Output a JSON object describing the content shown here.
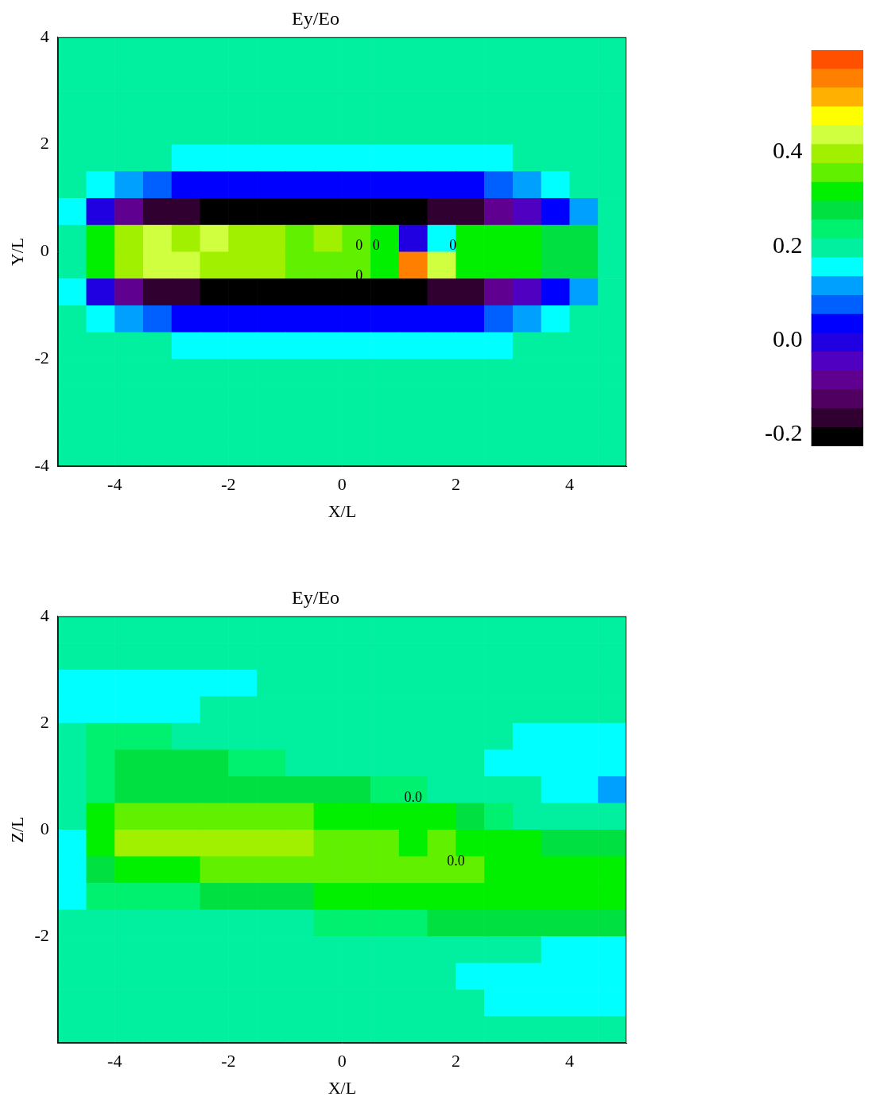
{
  "chart_data": [
    {
      "type": "heatmap",
      "title": "Ey/Eo",
      "x_label": "X/L",
      "y_label": "Y/L",
      "xlim": [
        -5,
        5
      ],
      "ylim": [
        -4,
        4
      ],
      "xticks": [
        -4,
        -2,
        0,
        2,
        4
      ],
      "yticks": [
        -4,
        -2,
        0,
        2,
        4
      ],
      "x": [
        -4.75,
        -4.25,
        -3.75,
        -3.25,
        -2.75,
        -2.25,
        -1.75,
        -1.25,
        -0.75,
        -0.25,
        0.25,
        0.75,
        1.25,
        1.75,
        2.25,
        2.75,
        3.25,
        3.75,
        4.25,
        4.75
      ],
      "y": [
        3.75,
        3.25,
        2.75,
        2.25,
        1.75,
        1.25,
        0.75,
        0.25,
        -0.25,
        -0.75,
        -1.25,
        -1.75,
        -2.25,
        -2.75,
        -3.25,
        -3.75
      ],
      "values": [
        [
          0.21,
          0.21,
          0.21,
          0.21,
          0.21,
          0.21,
          0.21,
          0.21,
          0.21,
          0.21,
          0.21,
          0.21,
          0.21,
          0.21,
          0.21,
          0.21,
          0.21,
          0.21,
          0.21,
          0.21
        ],
        [
          0.21,
          0.21,
          0.21,
          0.21,
          0.21,
          0.21,
          0.21,
          0.21,
          0.21,
          0.21,
          0.21,
          0.21,
          0.21,
          0.21,
          0.21,
          0.21,
          0.21,
          0.21,
          0.21,
          0.21
        ],
        [
          0.21,
          0.21,
          0.21,
          0.21,
          0.21,
          0.21,
          0.21,
          0.21,
          0.21,
          0.21,
          0.21,
          0.21,
          0.21,
          0.21,
          0.21,
          0.21,
          0.21,
          0.21,
          0.21,
          0.21
        ],
        [
          0.21,
          0.21,
          0.21,
          0.21,
          0.21,
          0.21,
          0.21,
          0.21,
          0.21,
          0.21,
          0.21,
          0.21,
          0.21,
          0.21,
          0.21,
          0.21,
          0.19,
          0.19,
          0.19,
          0.19
        ],
        [
          0.2,
          0.2,
          0.2,
          0.2,
          0.17,
          0.17,
          0.17,
          0.17,
          0.17,
          0.17,
          0.17,
          0.17,
          0.17,
          0.17,
          0.17,
          0.17,
          0.18,
          0.18,
          0.18,
          0.2
        ],
        [
          0.18,
          0.16,
          0.12,
          0.08,
          0.05,
          0.04,
          0.03,
          0.03,
          0.03,
          0.03,
          0.03,
          0.03,
          0.03,
          0.04,
          0.05,
          0.08,
          0.12,
          0.15,
          0.18,
          0.2
        ],
        [
          0.15,
          0.0,
          -0.1,
          -0.15,
          -0.18,
          -0.2,
          -0.2,
          -0.2,
          -0.2,
          -0.2,
          -0.2,
          -0.2,
          -0.2,
          -0.18,
          -0.15,
          -0.1,
          -0.05,
          0.05,
          0.12,
          0.18
        ],
        [
          0.2,
          0.3,
          0.38,
          0.42,
          0.4,
          0.42,
          0.38,
          0.4,
          0.36,
          0.38,
          0.34,
          0.33,
          0.0,
          0.15,
          0.32,
          0.32,
          0.3,
          0.28,
          0.26,
          0.2
        ],
        [
          0.2,
          0.3,
          0.4,
          0.45,
          0.42,
          0.4,
          0.4,
          0.38,
          0.37,
          0.36,
          0.34,
          0.33,
          0.55,
          0.42,
          0.32,
          0.32,
          0.3,
          0.28,
          0.26,
          0.2
        ],
        [
          0.15,
          0.0,
          -0.1,
          -0.15,
          -0.18,
          -0.2,
          -0.2,
          -0.2,
          -0.2,
          -0.2,
          -0.2,
          -0.2,
          -0.2,
          -0.18,
          -0.15,
          -0.1,
          -0.05,
          0.05,
          0.12,
          0.18
        ],
        [
          0.18,
          0.16,
          0.12,
          0.08,
          0.05,
          0.04,
          0.03,
          0.03,
          0.03,
          0.03,
          0.03,
          0.03,
          0.03,
          0.04,
          0.05,
          0.08,
          0.12,
          0.15,
          0.18,
          0.2
        ],
        [
          0.2,
          0.2,
          0.2,
          0.2,
          0.17,
          0.17,
          0.17,
          0.17,
          0.17,
          0.17,
          0.17,
          0.17,
          0.17,
          0.17,
          0.17,
          0.17,
          0.18,
          0.18,
          0.18,
          0.2
        ],
        [
          0.21,
          0.21,
          0.21,
          0.21,
          0.21,
          0.21,
          0.21,
          0.21,
          0.21,
          0.21,
          0.21,
          0.21,
          0.21,
          0.21,
          0.21,
          0.21,
          0.19,
          0.19,
          0.19,
          0.19
        ],
        [
          0.21,
          0.21,
          0.21,
          0.21,
          0.21,
          0.21,
          0.21,
          0.21,
          0.21,
          0.21,
          0.21,
          0.21,
          0.21,
          0.21,
          0.21,
          0.21,
          0.21,
          0.21,
          0.21,
          0.21
        ],
        [
          0.21,
          0.21,
          0.21,
          0.21,
          0.21,
          0.21,
          0.21,
          0.21,
          0.21,
          0.21,
          0.21,
          0.21,
          0.21,
          0.21,
          0.21,
          0.21,
          0.21,
          0.21,
          0.21,
          0.21
        ],
        [
          0.21,
          0.21,
          0.21,
          0.21,
          0.21,
          0.21,
          0.21,
          0.21,
          0.21,
          0.21,
          0.21,
          0.21,
          0.21,
          0.21,
          0.21,
          0.21,
          0.21,
          0.21,
          0.21,
          0.21
        ]
      ],
      "annotations": [
        {
          "text": "0",
          "x": 0.3,
          "y": 0.1
        },
        {
          "text": "0",
          "x": 0.6,
          "y": 0.1
        },
        {
          "text": "0",
          "x": 0.3,
          "y": -0.45
        },
        {
          "text": "0",
          "x": 1.95,
          "y": 0.1
        }
      ]
    },
    {
      "type": "heatmap",
      "title": "Ey/Eo",
      "x_label": "X/L",
      "y_label": "Z/L",
      "xlim": [
        -5,
        5
      ],
      "ylim": [
        -4,
        4
      ],
      "xticks": [
        -4,
        -2,
        0,
        2,
        4
      ],
      "yticks": [
        -2,
        0,
        2,
        4
      ],
      "x": [
        -4.75,
        -4.25,
        -3.75,
        -3.25,
        -2.75,
        -2.25,
        -1.75,
        -1.25,
        -0.75,
        -0.25,
        0.25,
        0.75,
        1.25,
        1.75,
        2.25,
        2.75,
        3.25,
        3.75,
        4.25,
        4.75
      ],
      "y": [
        3.75,
        3.25,
        2.75,
        2.25,
        1.75,
        1.25,
        0.75,
        0.25,
        -0.25,
        -0.75,
        -1.25,
        -1.75,
        -2.25,
        -2.75,
        -3.25,
        -3.75
      ],
      "values": [
        [
          0.21,
          0.21,
          0.21,
          0.21,
          0.21,
          0.21,
          0.21,
          0.21,
          0.21,
          0.21,
          0.21,
          0.21,
          0.21,
          0.21,
          0.21,
          0.21,
          0.21,
          0.21,
          0.21,
          0.21
        ],
        [
          0.21,
          0.21,
          0.21,
          0.21,
          0.21,
          0.21,
          0.21,
          0.21,
          0.21,
          0.21,
          0.21,
          0.21,
          0.21,
          0.21,
          0.21,
          0.21,
          0.21,
          0.21,
          0.21,
          0.21
        ],
        [
          0.17,
          0.17,
          0.17,
          0.17,
          0.17,
          0.17,
          0.17,
          0.21,
          0.21,
          0.21,
          0.21,
          0.21,
          0.21,
          0.21,
          0.21,
          0.21,
          0.21,
          0.21,
          0.21,
          0.21
        ],
        [
          0.17,
          0.17,
          0.17,
          0.17,
          0.17,
          0.2,
          0.2,
          0.21,
          0.21,
          0.21,
          0.21,
          0.21,
          0.21,
          0.21,
          0.21,
          0.21,
          0.21,
          0.21,
          0.21,
          0.21
        ],
        [
          0.21,
          0.23,
          0.23,
          0.23,
          0.21,
          0.21,
          0.21,
          0.21,
          0.21,
          0.21,
          0.21,
          0.21,
          0.21,
          0.21,
          0.21,
          0.21,
          0.17,
          0.17,
          0.17,
          0.17
        ],
        [
          0.21,
          0.24,
          0.27,
          0.27,
          0.27,
          0.27,
          0.24,
          0.24,
          0.21,
          0.21,
          0.21,
          0.21,
          0.21,
          0.21,
          0.21,
          0.17,
          0.17,
          0.17,
          0.17,
          0.17
        ],
        [
          0.21,
          0.25,
          0.28,
          0.28,
          0.28,
          0.28,
          0.28,
          0.28,
          0.28,
          0.28,
          0.28,
          0.25,
          0.25,
          0.21,
          0.21,
          0.21,
          0.21,
          0.16,
          0.16,
          0.13
        ],
        [
          0.2,
          0.3,
          0.36,
          0.36,
          0.36,
          0.36,
          0.36,
          0.36,
          0.36,
          0.33,
          0.33,
          0.33,
          0.32,
          0.3,
          0.28,
          0.25,
          0.21,
          0.21,
          0.21,
          0.2
        ],
        [
          0.17,
          0.3,
          0.38,
          0.38,
          0.38,
          0.38,
          0.38,
          0.38,
          0.38,
          0.35,
          0.35,
          0.35,
          0.33,
          0.34,
          0.33,
          0.33,
          0.3,
          0.29,
          0.28,
          0.27
        ],
        [
          0.17,
          0.28,
          0.33,
          0.33,
          0.33,
          0.35,
          0.35,
          0.35,
          0.35,
          0.35,
          0.35,
          0.35,
          0.35,
          0.35,
          0.35,
          0.33,
          0.33,
          0.33,
          0.3,
          0.3
        ],
        [
          0.17,
          0.25,
          0.25,
          0.25,
          0.25,
          0.28,
          0.28,
          0.28,
          0.28,
          0.3,
          0.3,
          0.3,
          0.3,
          0.3,
          0.3,
          0.3,
          0.3,
          0.3,
          0.3,
          0.3
        ],
        [
          0.21,
          0.21,
          0.21,
          0.21,
          0.21,
          0.21,
          0.21,
          0.21,
          0.21,
          0.23,
          0.23,
          0.23,
          0.23,
          0.27,
          0.27,
          0.27,
          0.27,
          0.27,
          0.27,
          0.27
        ],
        [
          0.21,
          0.21,
          0.21,
          0.18,
          0.18,
          0.18,
          0.21,
          0.21,
          0.21,
          0.21,
          0.21,
          0.21,
          0.21,
          0.21,
          0.21,
          0.21,
          0.21,
          0.17,
          0.17,
          0.17
        ],
        [
          0.21,
          0.21,
          0.21,
          0.21,
          0.21,
          0.21,
          0.21,
          0.21,
          0.21,
          0.21,
          0.21,
          0.21,
          0.21,
          0.21,
          0.17,
          0.17,
          0.17,
          0.17,
          0.17,
          0.17
        ],
        [
          0.21,
          0.21,
          0.21,
          0.21,
          0.21,
          0.21,
          0.21,
          0.21,
          0.21,
          0.21,
          0.21,
          0.21,
          0.21,
          0.21,
          0.21,
          0.17,
          0.17,
          0.17,
          0.17,
          0.17
        ],
        [
          0.21,
          0.21,
          0.21,
          0.21,
          0.21,
          0.21,
          0.21,
          0.21,
          0.21,
          0.21,
          0.21,
          0.21,
          0.21,
          0.21,
          0.21,
          0.21,
          0.21,
          0.21,
          0.19,
          0.19
        ]
      ],
      "annotations": [
        {
          "text": "0.0",
          "x": 1.25,
          "y": 0.6
        },
        {
          "text": "0.0",
          "x": 2.0,
          "y": -0.6
        }
      ]
    }
  ],
  "colorbar": {
    "range": [
      -0.225,
      0.617
    ],
    "ticks": [
      -0.2,
      {
        "value": 0,
        "label": "0.0"
      },
      0.2,
      0.4
    ],
    "colors": [
      "#000000",
      "#300030",
      "#500060",
      "#600090",
      "#5000c0",
      "#2000e0",
      "#0000ff",
      "#0060ff",
      "#00a0ff",
      "#00ffff",
      "#00f0a0",
      "#00f070",
      "#00e040",
      "#00f000",
      "#60f000",
      "#a0f000",
      "#d0ff40",
      "#ffff00",
      "#ffb000",
      "#ff8000",
      "#ff5000"
    ]
  }
}
